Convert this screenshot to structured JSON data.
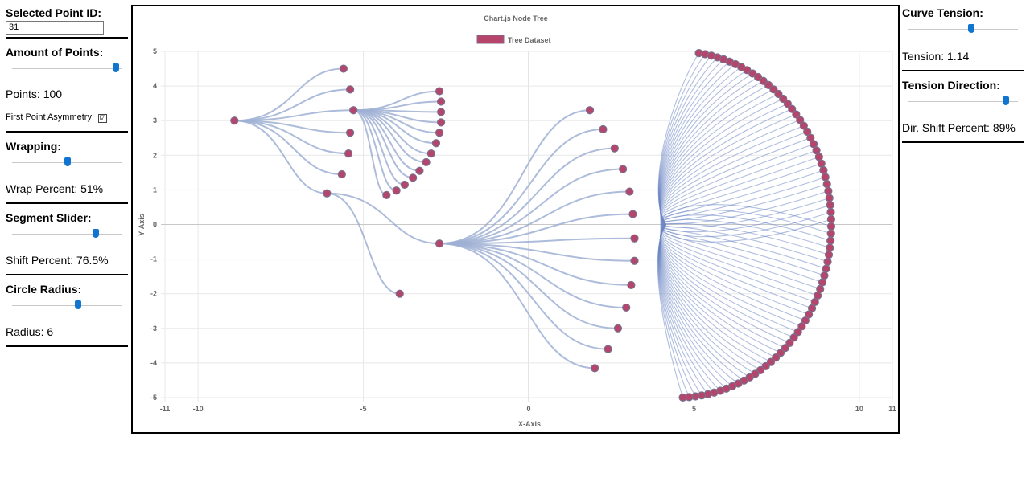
{
  "left_panel": {
    "selected_point": {
      "label": "Selected Point ID:",
      "value": "31"
    },
    "amount_of_points": {
      "label": "Amount of Points:",
      "value_text": "Points: 100",
      "slider_fraction": 0.95,
      "asymmetry_label": "First Point Asymmetry:",
      "asymmetry_checked": true,
      "check_glyph": "☑"
    },
    "wrapping": {
      "label": "Wrapping:",
      "value_text": "Wrap Percent: 51%",
      "slider_fraction": 0.51
    },
    "segment_slider": {
      "label": "Segment Slider:",
      "value_text": "Shift Percent: 76.5%",
      "slider_fraction": 0.765
    },
    "circle_radius": {
      "label": "Circle Radius:",
      "value_text": "Radius: 6",
      "slider_fraction": 0.6
    }
  },
  "right_panel": {
    "curve_tension": {
      "label": "Curve Tension:",
      "value_text": "Tension: 1.14",
      "slider_fraction": 0.57
    },
    "tension_direction": {
      "label": "Tension Direction:",
      "value_text": "Dir. Shift Percent: 89%",
      "slider_fraction": 0.89
    }
  },
  "colors": {
    "slider_thumb": "#0f75d0",
    "line": "#9fb0d4",
    "point_fill": "#b5456b",
    "point_stroke": "#7a6f8e",
    "grid": "#e8e8e8"
  },
  "chart_data": {
    "type": "scatter",
    "title": "Chart.js Node Tree",
    "legend": {
      "label": "Tree Dataset",
      "position": "top"
    },
    "xlabel": "X-Axis",
    "ylabel": "Y-Axis",
    "xlim": [
      -11,
      11
    ],
    "ylim": [
      -5,
      5
    ],
    "x_ticks": [
      "-11",
      "-10",
      "-5",
      "0",
      "5",
      "10",
      "11"
    ],
    "y_ticks": [
      "5",
      "4",
      "3",
      "2",
      "1",
      "0",
      "-1",
      "-2",
      "-3",
      "-4",
      "-5"
    ],
    "grid": true,
    "tree": [
      {
        "x": -8.9,
        "y": 3.0,
        "children": [
          {
            "x": -5.6,
            "y": 4.5
          },
          {
            "x": -5.4,
            "y": 3.9
          },
          {
            "x": -5.4,
            "y": 2.65
          },
          {
            "x": -5.45,
            "y": 2.05
          },
          {
            "x": -5.65,
            "y": 1.45
          },
          {
            "x": -5.3,
            "y": 3.3,
            "children": [
              {
                "x": -2.7,
                "y": 3.85
              },
              {
                "x": -2.65,
                "y": 3.55
              },
              {
                "x": -2.65,
                "y": 3.25
              },
              {
                "x": -2.65,
                "y": 2.95
              },
              {
                "x": -2.7,
                "y": 2.65
              },
              {
                "x": -2.8,
                "y": 2.35
              },
              {
                "x": -2.95,
                "y": 2.05
              },
              {
                "x": -3.1,
                "y": 1.8
              },
              {
                "x": -3.3,
                "y": 1.55
              },
              {
                "x": -3.5,
                "y": 1.35
              },
              {
                "x": -3.75,
                "y": 1.15
              },
              {
                "x": -4.0,
                "y": 0.98
              },
              {
                "x": -4.3,
                "y": 0.85
              }
            ]
          },
          {
            "x": -6.1,
            "y": 0.9,
            "children": [
              {
                "x": -3.9,
                "y": -2.0
              },
              {
                "x": -2.7,
                "y": -0.55,
                "children": [
                  {
                    "x": 1.85,
                    "y": 3.3
                  },
                  {
                    "x": 2.25,
                    "y": 2.75
                  },
                  {
                    "x": 2.6,
                    "y": 2.2
                  },
                  {
                    "x": 2.85,
                    "y": 1.6
                  },
                  {
                    "x": 3.05,
                    "y": 0.95
                  },
                  {
                    "x": 3.15,
                    "y": 0.3
                  },
                  {
                    "x": 3.2,
                    "y": -0.4
                  },
                  {
                    "x": 3.2,
                    "y": -1.05
                  },
                  {
                    "x": 3.1,
                    "y": -1.75
                  },
                  {
                    "x": 2.95,
                    "y": -2.4
                  },
                  {
                    "x": 2.7,
                    "y": -3.0
                  },
                  {
                    "x": 2.4,
                    "y": -3.6
                  },
                  {
                    "x": 2.0,
                    "y": -4.15
                  }
                ]
              }
            ]
          }
        ]
      }
    ],
    "fan": {
      "count": 73,
      "center": {
        "x": 4.5,
        "y": 0.0
      },
      "radius": 5.0,
      "start_angle_deg": 82,
      "end_angle_deg": -88
    }
  }
}
